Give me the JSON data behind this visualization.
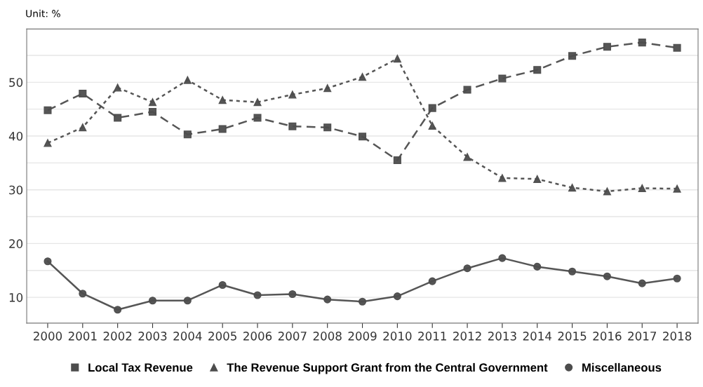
{
  "chart_data": {
    "type": "line",
    "annotations": [
      "Unit: %"
    ],
    "categories": [
      "2000",
      "2001",
      "2002",
      "2003",
      "2004",
      "2005",
      "2006",
      "2007",
      "2008",
      "2009",
      "2010",
      "2011",
      "2012",
      "2013",
      "2014",
      "2015",
      "2016",
      "2017",
      "2018"
    ],
    "series": [
      {
        "name": "Local Tax Revenue",
        "color": "#4d4d4d",
        "marker": "square",
        "line_style": "dashed",
        "values": [
          44.8,
          47.9,
          43.4,
          44.5,
          40.3,
          41.3,
          43.4,
          41.8,
          41.6,
          39.9,
          35.5,
          45.2,
          48.6,
          50.7,
          52.3,
          54.9,
          56.6,
          57.4,
          56.4
        ]
      },
      {
        "name": "The Revenue Support Grant from the Central Government",
        "color": "#4d4d4d",
        "marker": "triangle",
        "line_style": "dotted",
        "values": [
          38.7,
          41.6,
          49.0,
          46.3,
          50.4,
          46.7,
          46.3,
          47.7,
          48.9,
          51.0,
          54.4,
          41.9,
          36.1,
          32.2,
          32.0,
          30.4,
          29.7,
          30.3,
          30.2
        ]
      },
      {
        "name": "Miscellaneous",
        "color": "#4d4d4d",
        "marker": "circle",
        "line_style": "solid",
        "values": [
          16.7,
          10.7,
          7.7,
          9.4,
          9.4,
          12.3,
          10.4,
          10.6,
          9.6,
          9.2,
          10.2,
          13.0,
          15.4,
          17.3,
          15.7,
          14.8,
          13.9,
          12.6,
          13.5
        ]
      }
    ],
    "ylim": [
      5.2,
      59.9
    ],
    "yticks": [
      10,
      {
        "value": 15,
        "label": null
      },
      20,
      {
        "value": 25,
        "label": null
      },
      30,
      {
        "value": 35,
        "label": null
      },
      40,
      {
        "value": 45,
        "label": null
      },
      50,
      {
        "value": 55,
        "label": null
      }
    ],
    "grid": "y",
    "legend": "bottom"
  }
}
